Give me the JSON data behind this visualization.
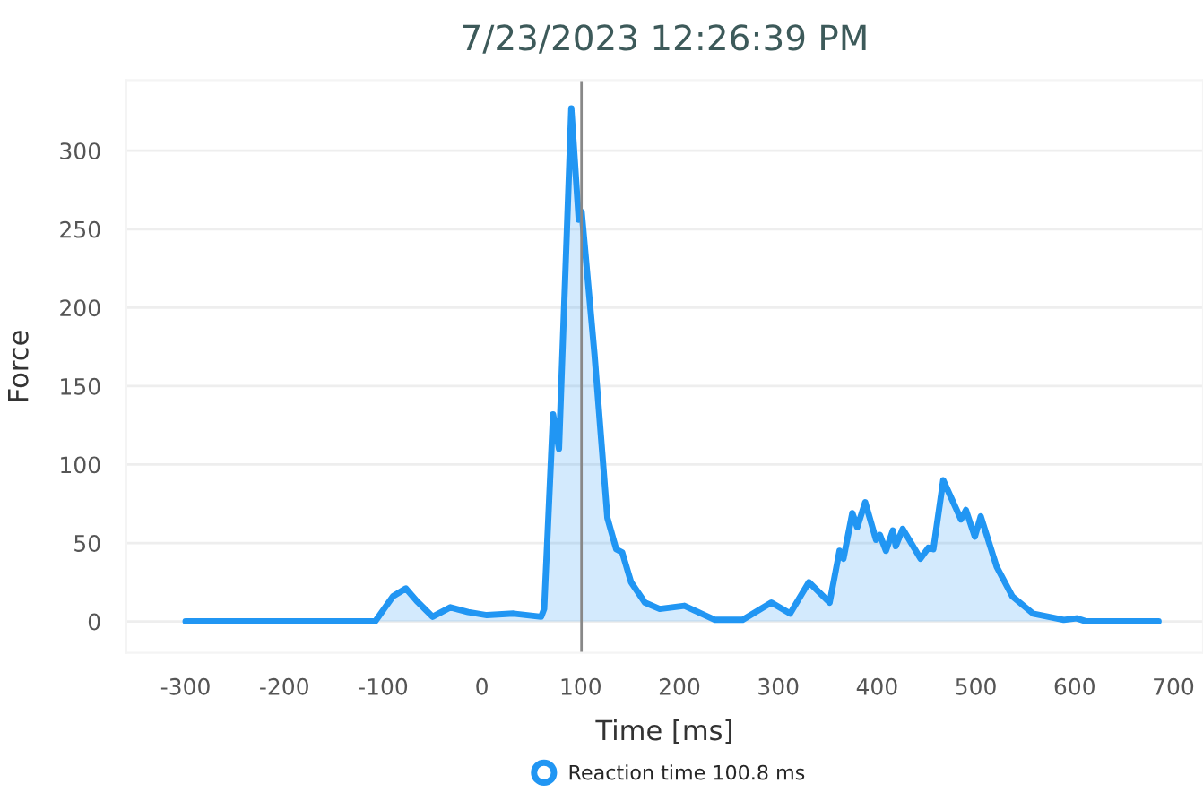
{
  "chart_data": {
    "type": "area",
    "title": "7/23/2023 12:26:39 PM",
    "xlabel": "Time [ms]",
    "ylabel": "Force",
    "series": [
      {
        "name": "Reaction time 100.8 ms",
        "color": "#2196f3",
        "x": [
          -300,
          -108,
          -90,
          -77,
          -66,
          -50,
          -32,
          -14,
          5,
          32,
          60,
          63,
          72,
          78,
          90.5,
          98,
          101,
          114,
          127,
          136,
          142,
          151,
          165,
          180,
          205,
          236,
          264,
          293,
          312,
          331,
          352,
          362,
          366,
          375,
          380,
          388,
          399,
          403,
          409,
          416,
          419,
          426,
          444,
          452,
          457,
          467,
          485,
          490,
          499,
          505,
          521,
          537,
          558,
          589,
          602,
          612,
          685
        ],
        "values": [
          0,
          0,
          16,
          21,
          13,
          3,
          9,
          6,
          4,
          5,
          3,
          8,
          132,
          110,
          327,
          256,
          261,
          170,
          66,
          46,
          44,
          25,
          12,
          8,
          10,
          1,
          1,
          12,
          5,
          25,
          12,
          45,
          40,
          69,
          60,
          76,
          52,
          55,
          45,
          58,
          48,
          59,
          40,
          47,
          46,
          90,
          65,
          71,
          54,
          67,
          35,
          16,
          5,
          1,
          2,
          0,
          0
        ]
      }
    ],
    "xlim": [
      -360,
      730
    ],
    "ylim": [
      -20,
      345
    ],
    "xticks": [
      -300,
      -200,
      -100,
      0,
      100,
      200,
      300,
      400,
      500,
      600,
      700
    ],
    "yticks": [
      0,
      50,
      100,
      150,
      200,
      250,
      300
    ],
    "grid": "y",
    "legend": "bottom",
    "marker": "none",
    "line_style": "solid",
    "ref_lines": [
      {
        "axis": "x",
        "value": 100.8,
        "color": "#888888",
        "line_style": "solid"
      }
    ]
  }
}
